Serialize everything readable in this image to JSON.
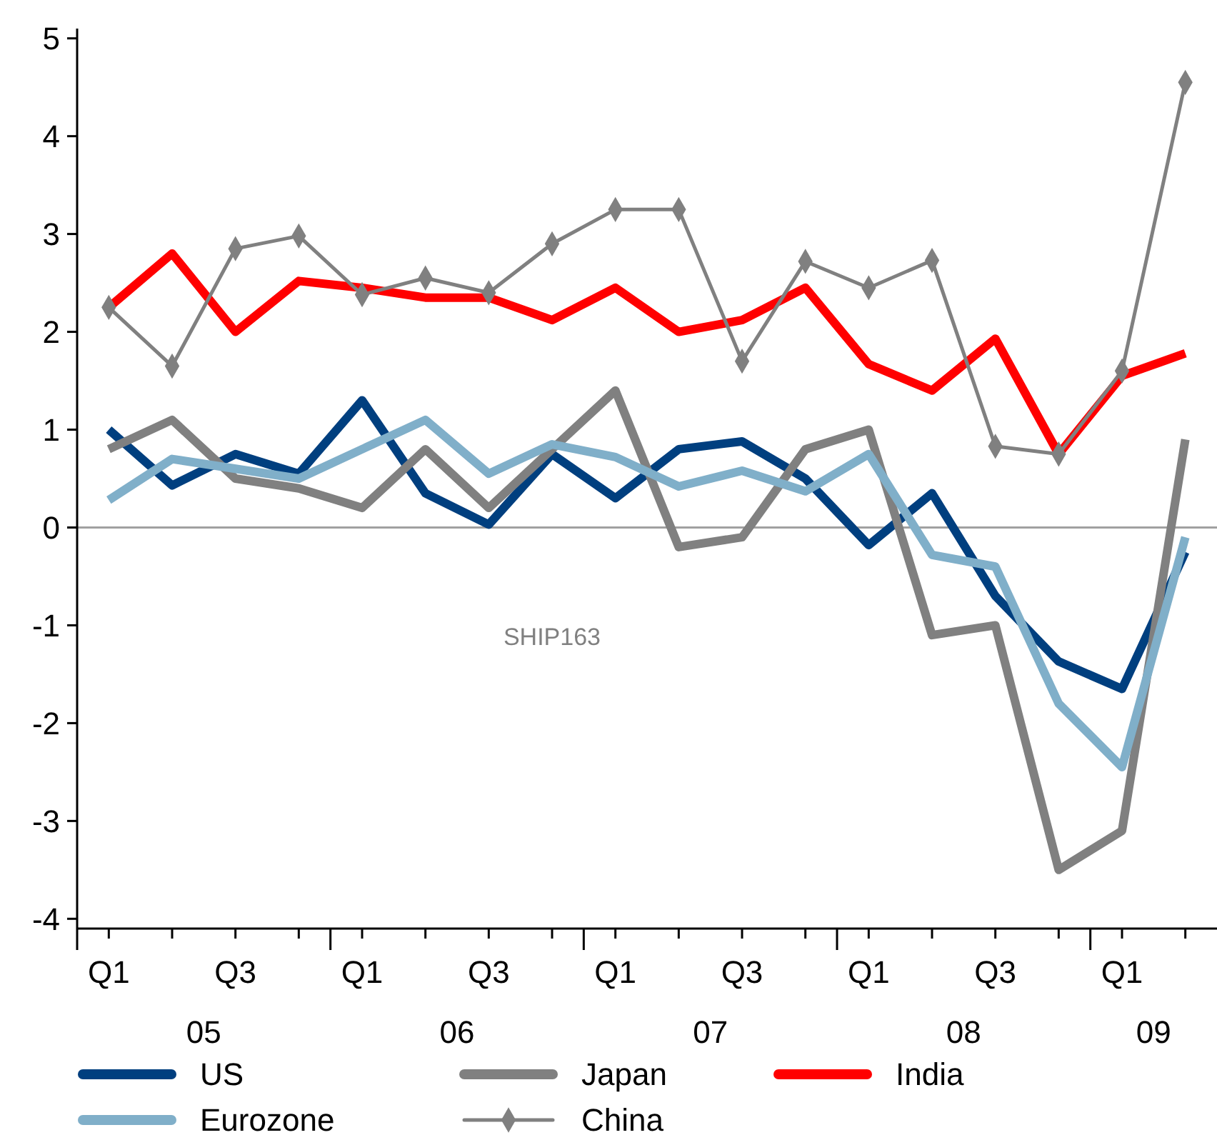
{
  "chart_data": {
    "type": "line",
    "categories": [
      "Q1",
      null,
      "Q3",
      null,
      "Q1",
      null,
      "Q3",
      null,
      "Q1",
      null,
      "Q3",
      null,
      "Q1",
      null,
      "Q3",
      null,
      "Q1",
      null
    ],
    "series": [
      {
        "name": "US",
        "color": "#003f7f",
        "values": [
          1.0,
          0.43,
          0.75,
          0.55,
          1.3,
          0.35,
          0.03,
          0.75,
          0.3,
          0.8,
          0.88,
          0.5,
          -0.18,
          0.35,
          -0.7,
          -1.37,
          -1.65,
          -0.25
        ]
      },
      {
        "name": "Japan",
        "color": "#808080",
        "values": [
          0.8,
          1.1,
          0.5,
          0.4,
          0.2,
          0.8,
          0.2,
          0.8,
          1.4,
          -0.2,
          -0.1,
          0.8,
          1.0,
          -1.1,
          -1.0,
          -3.5,
          -3.1,
          0.9
        ]
      },
      {
        "name": "India",
        "color": "#ff0000",
        "values": [
          2.25,
          2.8,
          2.0,
          2.52,
          2.45,
          2.35,
          2.35,
          2.12,
          2.45,
          2.0,
          2.12,
          2.45,
          1.67,
          1.4,
          1.93,
          0.75,
          1.55,
          1.78
        ]
      },
      {
        "name": "Eurozone",
        "color": "#80afc9",
        "values": [
          0.28,
          0.7,
          0.6,
          0.5,
          0.8,
          1.1,
          0.55,
          0.85,
          0.72,
          0.42,
          0.58,
          0.37,
          0.75,
          -0.28,
          -0.4,
          -1.8,
          -2.45,
          -0.1
        ]
      },
      {
        "name": "China",
        "color": "#808080",
        "marker": "diamond",
        "values": [
          2.25,
          1.65,
          2.85,
          2.98,
          2.38,
          2.55,
          2.4,
          2.9,
          3.25,
          3.25,
          1.7,
          2.72,
          2.45,
          2.73,
          0.83,
          0.75,
          1.6,
          4.55
        ]
      }
    ],
    "ylim": [
      -4.1,
      5.1
    ],
    "yticks": [
      -4,
      -3,
      -2,
      -1,
      0,
      1,
      2,
      3,
      4,
      5
    ],
    "ref_lines": [
      {
        "axis": "y",
        "value": 0,
        "color": "#a0a0a0"
      }
    ],
    "annotations": [
      "SHIP163",
      "05",
      "06",
      "07",
      "08",
      "09"
    ],
    "legend": "bottom",
    "grid": false
  }
}
